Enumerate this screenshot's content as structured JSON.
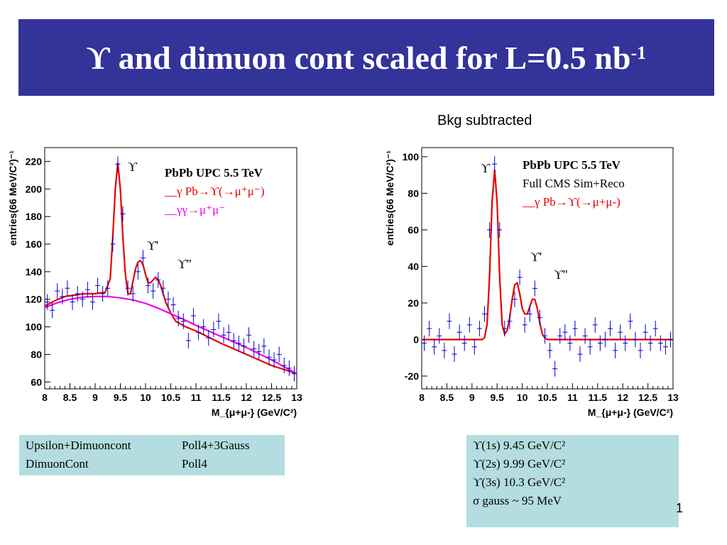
{
  "slide": {
    "title": "ϒ and dimuon cont scaled for L=0.5 nb",
    "title_exponent": "-1",
    "subtitle": "Bkg subtracted",
    "page_number": "1"
  },
  "colors": {
    "title_bg": "#333399",
    "fit": "#e60000",
    "background_fit": "#ee00ee",
    "data": "#0000cc",
    "box_bg": "#b3dde0"
  },
  "left_box": {
    "rows": [
      [
        "Upsilon+Dimuoncont",
        "Poll4+3Gauss"
      ],
      [
        "DimuonCont",
        "Poll4"
      ]
    ]
  },
  "right_box": {
    "lines": [
      "ϒ(1s)  9.45 GeV/C²",
      " ϒ(2s) 9.99 GeV/C²",
      "ϒ(3s)  10.3 GeV/C²",
      "σ gauss ~ 95 MeV"
    ]
  },
  "chart_data": [
    {
      "type": "scatter",
      "title": "",
      "xlabel": "M_{μ+μ-} (GeV/C²)",
      "ylabel": "entries(66 MeV/C²)⁻¹",
      "xlim": [
        8,
        13
      ],
      "ylim": [
        55,
        230
      ],
      "x_ticks": [
        "8",
        "8.5",
        "9",
        "9.5",
        "10",
        "10.5",
        "11",
        "11.5",
        "12",
        "12.5",
        "13"
      ],
      "y_ticks": [
        "60",
        "80",
        "100",
        "120",
        "140",
        "160",
        "180",
        "200",
        "220"
      ],
      "legend": [
        "PbPb UPC 5.5 TeV",
        "__γ Pb→ϒ(→μ⁺μ⁻)",
        "__γγ→μ⁺μ⁻"
      ],
      "peak_labels": [
        "ϒ",
        "ϒ'",
        "ϒ''"
      ],
      "series": [
        {
          "name": "γ Pb→ϒ(→μ⁺μ⁻)",
          "kind": "fit",
          "x": [
            8.0,
            8.2,
            8.4,
            8.6,
            8.8,
            9.0,
            9.2,
            9.3,
            9.35,
            9.4,
            9.45,
            9.5,
            9.55,
            9.6,
            9.65,
            9.7,
            9.75,
            9.8,
            9.85,
            9.9,
            9.95,
            10.0,
            10.05,
            10.1,
            10.15,
            10.2,
            10.25,
            10.3,
            10.35,
            10.4,
            10.5,
            10.6,
            10.8,
            11.0,
            11.5,
            12.0,
            12.5,
            13.0
          ],
          "y": [
            115,
            119,
            122,
            123,
            124,
            124,
            125,
            135,
            165,
            200,
            219,
            200,
            165,
            138,
            124,
            124,
            133,
            142,
            147,
            148,
            145,
            138,
            132,
            132,
            134,
            136,
            134,
            130,
            124,
            118,
            110,
            104,
            100,
            97,
            88,
            80,
            72,
            66
          ]
        },
        {
          "name": "γγ→μ⁺μ⁻",
          "kind": "background",
          "x": [
            8.0,
            8.25,
            8.5,
            8.75,
            9.0,
            9.25,
            9.5,
            9.75,
            10.0,
            10.25,
            10.5,
            10.75,
            11.0,
            11.25,
            11.5,
            11.75,
            12.0,
            12.25,
            12.5,
            12.75,
            13.0
          ],
          "y": [
            114,
            117.5,
            120,
            121.5,
            122,
            122,
            121,
            119.5,
            117,
            113.5,
            109.5,
            105.5,
            101,
            97,
            93,
            89,
            85,
            80.5,
            76,
            71,
            66
          ]
        },
        {
          "name": "data",
          "kind": "data",
          "x": [
            8.05,
            8.15,
            8.25,
            8.35,
            8.45,
            8.55,
            8.65,
            8.75,
            8.85,
            8.95,
            9.05,
            9.15,
            9.25,
            9.35,
            9.45,
            9.55,
            9.65,
            9.75,
            9.85,
            9.95,
            10.05,
            10.15,
            10.25,
            10.35,
            10.45,
            10.55,
            10.65,
            10.75,
            10.85,
            10.95,
            11.05,
            11.15,
            11.25,
            11.35,
            11.45,
            11.55,
            11.65,
            11.75,
            11.85,
            11.95,
            12.05,
            12.15,
            12.25,
            12.35,
            12.45,
            12.55,
            12.65,
            12.75,
            12.85,
            12.95
          ],
          "y": [
            118,
            112,
            126,
            122,
            128,
            118,
            124,
            120,
            127,
            118,
            130,
            124,
            128,
            160,
            218,
            182,
            128,
            124,
            140,
            150,
            130,
            126,
            134,
            128,
            120,
            116,
            106,
            104,
            90,
            108,
            96,
            100,
            92,
            98,
            104,
            94,
            96,
            90,
            88,
            86,
            94,
            84,
            82,
            86,
            78,
            76,
            80,
            72,
            70,
            66
          ]
        }
      ]
    },
    {
      "type": "scatter",
      "title": "",
      "xlabel": "M_{μ+μ-} (GeV/C²)",
      "ylabel": "entries(66 MeV/C²)⁻¹",
      "xlim": [
        8,
        13
      ],
      "ylim": [
        -27,
        105
      ],
      "x_ticks": [
        "8",
        "8.5",
        "9",
        "9.5",
        "10",
        "10.5",
        "11",
        "11.5",
        "12",
        "12.5",
        "13"
      ],
      "y_ticks": [
        "-20",
        "0",
        "20",
        "40",
        "60",
        "80",
        "100"
      ],
      "legend": [
        "PbPb UPC 5.5 TeV",
        "Full CMS Sim+Reco",
        "__γ Pb→ϒ(→μ+μ-)"
      ],
      "peak_labels": [
        "ϒ",
        "ϒ'",
        "ϒ''"
      ],
      "series": [
        {
          "name": "γ Pb→ϒ(→μ+μ-)",
          "kind": "fit",
          "x": [
            8.0,
            9.0,
            9.2,
            9.25,
            9.3,
            9.35,
            9.4,
            9.45,
            9.5,
            9.55,
            9.6,
            9.65,
            9.7,
            9.75,
            9.8,
            9.85,
            9.9,
            9.95,
            10.0,
            10.05,
            10.1,
            10.15,
            10.2,
            10.25,
            10.3,
            10.35,
            10.4,
            10.45,
            10.5,
            10.55,
            10.6,
            10.7,
            13.0
          ],
          "y": [
            0,
            0,
            0,
            1,
            8,
            35,
            75,
            93,
            75,
            35,
            8,
            3,
            5,
            12,
            22,
            30,
            31,
            25,
            17,
            14,
            14,
            18,
            22,
            22,
            17,
            9,
            3,
            1,
            0,
            0,
            0,
            0,
            0
          ]
        },
        {
          "name": "data",
          "kind": "data",
          "x": [
            8.05,
            8.15,
            8.25,
            8.35,
            8.45,
            8.55,
            8.65,
            8.75,
            8.85,
            8.95,
            9.05,
            9.15,
            9.25,
            9.35,
            9.45,
            9.55,
            9.65,
            9.75,
            9.85,
            9.95,
            10.05,
            10.15,
            10.25,
            10.35,
            10.45,
            10.55,
            10.65,
            10.75,
            10.85,
            10.95,
            11.05,
            11.15,
            11.25,
            11.35,
            11.45,
            11.55,
            11.65,
            11.75,
            11.85,
            11.95,
            12.05,
            12.15,
            12.25,
            12.35,
            12.45,
            12.55,
            12.65,
            12.75,
            12.85,
            12.95
          ],
          "y": [
            -2,
            6,
            -4,
            2,
            -6,
            10,
            -8,
            4,
            -2,
            8,
            -4,
            6,
            14,
            60,
            96,
            60,
            6,
            10,
            22,
            34,
            8,
            14,
            28,
            12,
            2,
            -6,
            -16,
            2,
            4,
            -2,
            6,
            -8,
            2,
            -4,
            8,
            -2,
            0,
            6,
            -6,
            4,
            -2,
            10,
            0,
            -6,
            4,
            -2,
            6,
            -2,
            -4,
            0
          ]
        }
      ]
    }
  ]
}
